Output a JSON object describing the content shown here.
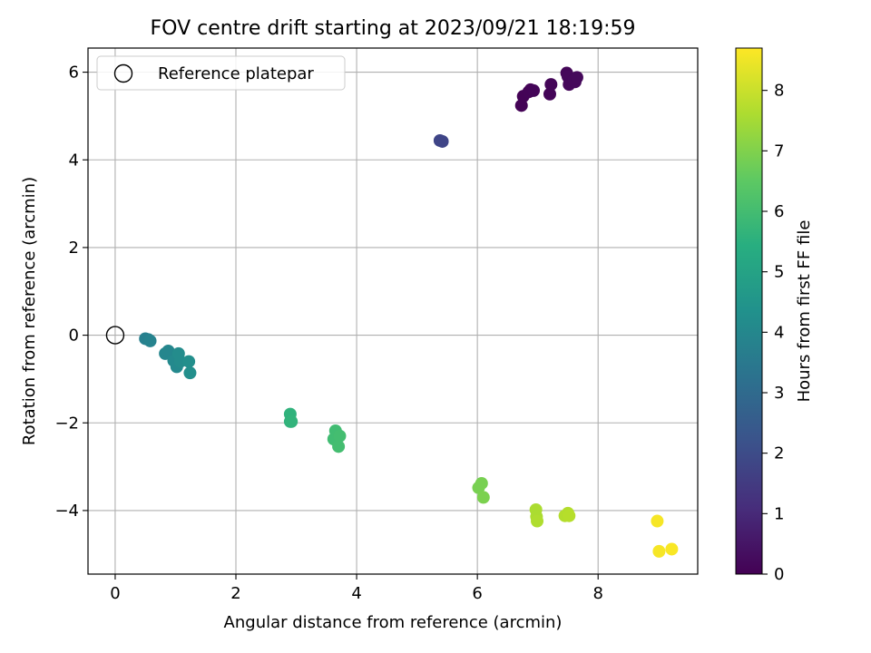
{
  "chart_data": {
    "type": "scatter",
    "title": "FOV centre drift starting at 2023/09/21 18:19:59",
    "xlabel": "Angular distance from reference (arcmin)",
    "ylabel": "Rotation from reference (arcmin)",
    "xlim": [
      -0.45,
      9.65
    ],
    "ylim": [
      -5.45,
      6.55
    ],
    "xticks": [
      0,
      2,
      4,
      6,
      8
    ],
    "xtick_labels": [
      "0",
      "2",
      "4",
      "6",
      "8"
    ],
    "yticks": [
      -4,
      -2,
      0,
      2,
      4,
      6
    ],
    "ytick_labels": [
      "−4",
      "−2",
      "0",
      "2",
      "4",
      "6"
    ],
    "grid": true,
    "legend": {
      "placement": "top-left",
      "entries": [
        "Reference platepar"
      ]
    },
    "reference_point": {
      "x": 0,
      "y": 0
    },
    "colorbar": {
      "label": "Hours from first FF file",
      "colormap": "viridis",
      "range": [
        0,
        8.7
      ],
      "ticks": [
        0,
        1,
        2,
        3,
        4,
        5,
        6,
        7,
        8
      ],
      "tick_labels": [
        "0",
        "1",
        "2",
        "3",
        "4",
        "5",
        "6",
        "7",
        "8"
      ]
    },
    "points": [
      {
        "x": 6.73,
        "y": 5.24,
        "c": 0.05
      },
      {
        "x": 6.76,
        "y": 5.45,
        "c": 0.05
      },
      {
        "x": 6.85,
        "y": 5.55,
        "c": 0.08
      },
      {
        "x": 6.88,
        "y": 5.6,
        "c": 0.08
      },
      {
        "x": 6.93,
        "y": 5.58,
        "c": 0.1
      },
      {
        "x": 7.2,
        "y": 5.5,
        "c": 0.1
      },
      {
        "x": 7.22,
        "y": 5.72,
        "c": 0.12
      },
      {
        "x": 7.48,
        "y": 5.98,
        "c": 0.12
      },
      {
        "x": 7.5,
        "y": 5.9,
        "c": 0.15
      },
      {
        "x": 7.52,
        "y": 5.72,
        "c": 0.15
      },
      {
        "x": 7.6,
        "y": 5.82,
        "c": 0.18
      },
      {
        "x": 7.62,
        "y": 5.78,
        "c": 0.18
      },
      {
        "x": 7.65,
        "y": 5.88,
        "c": 0.2
      },
      {
        "x": 5.38,
        "y": 4.44,
        "c": 1.8
      },
      {
        "x": 5.42,
        "y": 4.42,
        "c": 1.8
      },
      {
        "x": 0.5,
        "y": -0.08,
        "c": 3.8
      },
      {
        "x": 0.55,
        "y": -0.1,
        "c": 3.8
      },
      {
        "x": 0.58,
        "y": -0.13,
        "c": 3.9
      },
      {
        "x": 0.83,
        "y": -0.42,
        "c": 4.0
      },
      {
        "x": 0.88,
        "y": -0.36,
        "c": 4.0
      },
      {
        "x": 0.97,
        "y": -0.58,
        "c": 4.1
      },
      {
        "x": 1.02,
        "y": -0.72,
        "c": 4.1
      },
      {
        "x": 1.05,
        "y": -0.42,
        "c": 4.2
      },
      {
        "x": 1.08,
        "y": -0.6,
        "c": 4.2
      },
      {
        "x": 1.22,
        "y": -0.6,
        "c": 4.3
      },
      {
        "x": 1.24,
        "y": -0.86,
        "c": 4.3
      },
      {
        "x": 2.9,
        "y": -1.8,
        "c": 5.6
      },
      {
        "x": 2.9,
        "y": -1.97,
        "c": 5.6
      },
      {
        "x": 2.92,
        "y": -1.97,
        "c": 5.65
      },
      {
        "x": 3.62,
        "y": -2.37,
        "c": 6.0
      },
      {
        "x": 3.65,
        "y": -2.18,
        "c": 6.0
      },
      {
        "x": 3.7,
        "y": -2.54,
        "c": 6.05
      },
      {
        "x": 3.72,
        "y": -2.3,
        "c": 6.05
      },
      {
        "x": 6.02,
        "y": -3.48,
        "c": 6.9
      },
      {
        "x": 6.07,
        "y": -3.38,
        "c": 6.9
      },
      {
        "x": 6.1,
        "y": -3.7,
        "c": 6.95
      },
      {
        "x": 6.97,
        "y": -3.98,
        "c": 7.6
      },
      {
        "x": 6.98,
        "y": -4.14,
        "c": 7.6
      },
      {
        "x": 6.99,
        "y": -4.24,
        "c": 7.65
      },
      {
        "x": 7.45,
        "y": -4.12,
        "c": 7.7
      },
      {
        "x": 7.5,
        "y": -4.06,
        "c": 7.7
      },
      {
        "x": 7.52,
        "y": -4.12,
        "c": 7.75
      },
      {
        "x": 8.98,
        "y": -4.24,
        "c": 8.6
      },
      {
        "x": 9.01,
        "y": -4.93,
        "c": 8.6
      },
      {
        "x": 9.22,
        "y": -4.88,
        "c": 8.65
      }
    ]
  }
}
